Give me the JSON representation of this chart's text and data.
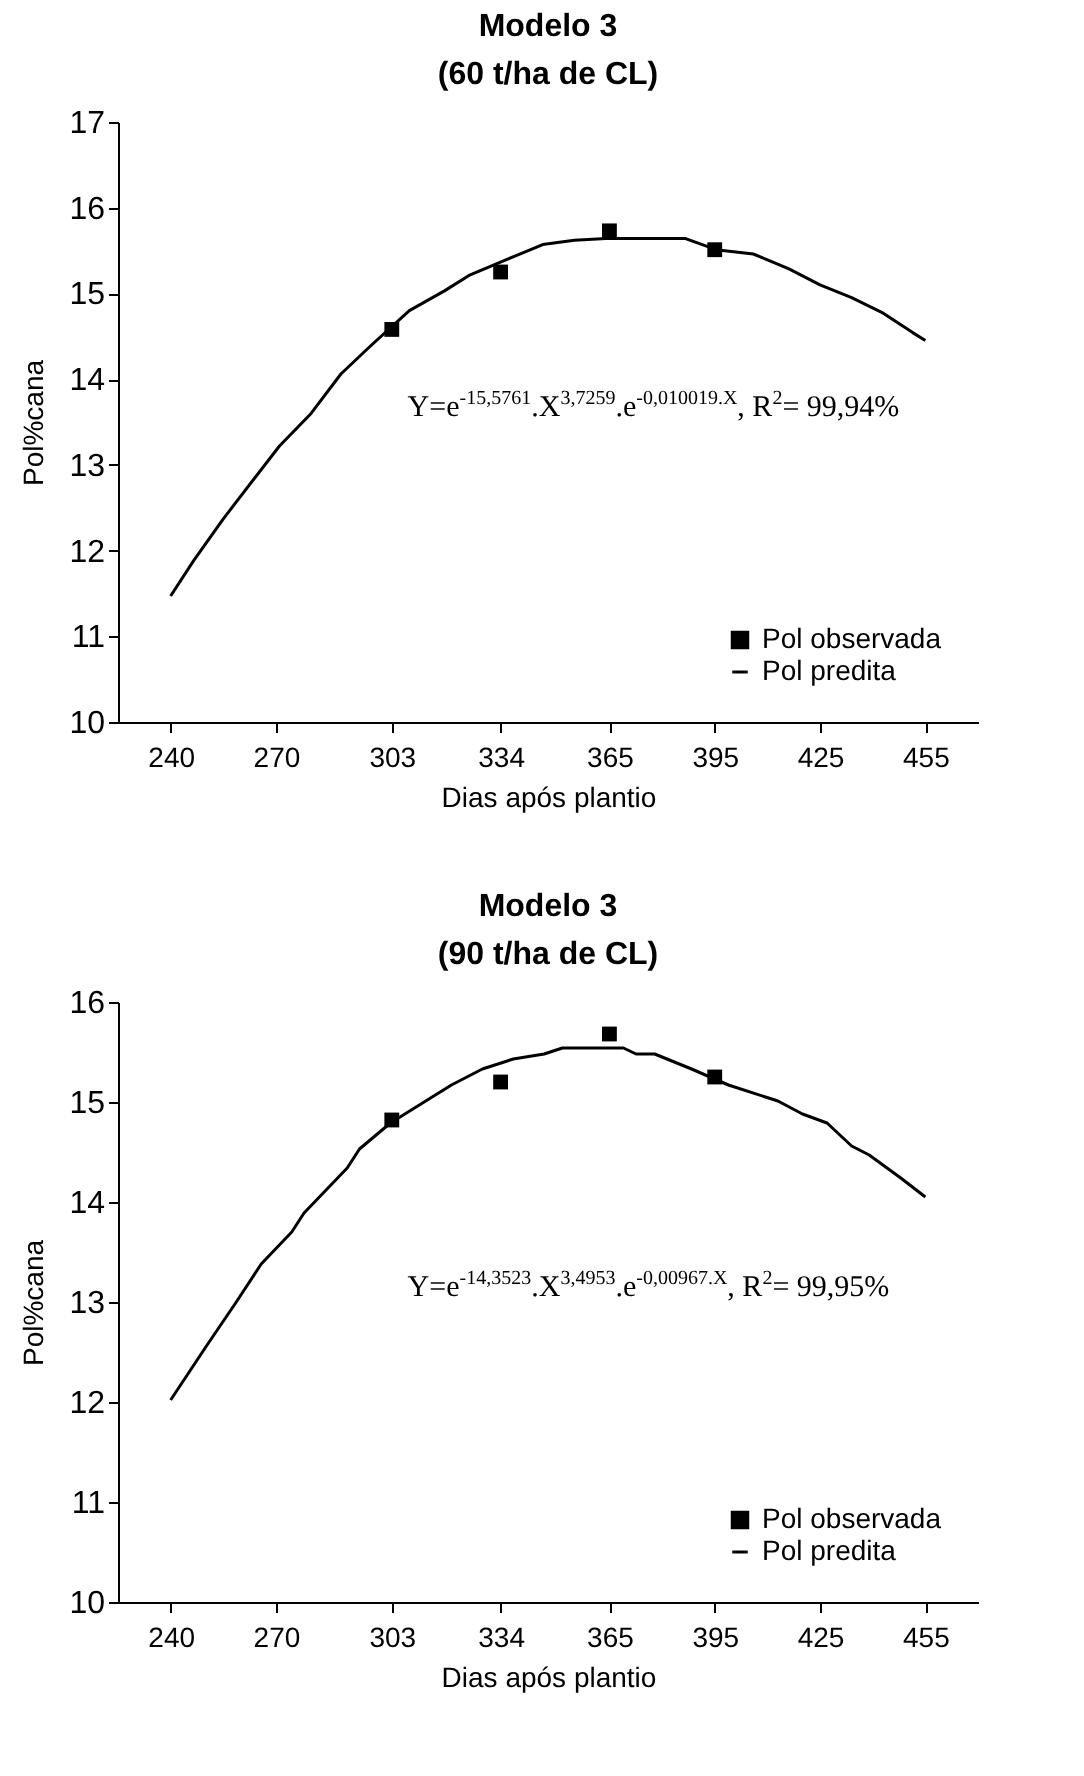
{
  "chart_data": [
    {
      "type": "line",
      "title": "Modelo 3",
      "subtitle": "(60 t/ha de CL)",
      "xlabel": "Dias após plantio",
      "ylabel": "Pol%cana",
      "xlim": [
        225,
        470
      ],
      "xticks": [
        240,
        270,
        303,
        334,
        365,
        395,
        425,
        455
      ],
      "ylim": [
        10,
        17
      ],
      "yticks": [
        10,
        11,
        12,
        13,
        14,
        15,
        16,
        17
      ],
      "grid": false,
      "legend": "bottom right",
      "line_style": "solid",
      "annotations": [
        "Y=e$^{-15,5761}$.X$^{3,7259}$.e$^{-0,010019.X}$, R$^{2}$= 99,94%"
      ],
      "series": [
        {
          "name": "Pol observada",
          "type": "scatter",
          "marker": "square",
          "color": "#000000",
          "x": [
            303,
            334,
            365,
            395
          ],
          "values": [
            14.58,
            15.25,
            15.73,
            15.51
          ]
        },
        {
          "name": "Pol predita",
          "color": "#000000",
          "x": [
            240,
            246.5,
            255,
            264,
            271,
            280,
            288.5,
            297,
            308,
            318,
            325,
            336,
            346,
            355,
            364,
            386.7,
            395.4,
            406,
            416,
            425,
            434,
            443,
            451.5,
            455
          ],
          "values": [
            11.47,
            11.88,
            12.37,
            12.85,
            13.22,
            13.6,
            14.06,
            14.39,
            14.8,
            15.03,
            15.21,
            15.4,
            15.57,
            15.62,
            15.64,
            15.64,
            15.51,
            15.46,
            15.29,
            15.1,
            14.95,
            14.77,
            14.54,
            14.45
          ]
        }
      ]
    },
    {
      "type": "line",
      "title": "Modelo 3",
      "subtitle": "(90 t/ha de CL)",
      "xlabel": "Dias após plantio",
      "ylabel": "Pol%cana",
      "xlim": [
        225,
        470
      ],
      "xticks": [
        240,
        270,
        303,
        334,
        365,
        395,
        425,
        455
      ],
      "ylim": [
        10,
        16
      ],
      "yticks": [
        10,
        11,
        12,
        13,
        14,
        15,
        16
      ],
      "grid": false,
      "legend": "bottom right",
      "line_style": "solid",
      "annotations": [
        "Y=e$^{-14,3523}$.X$^{3,4953}$.e$^{-0,00967.X}$, R$^{2}$= 99,95%"
      ],
      "series": [
        {
          "name": "Pol observada",
          "type": "scatter",
          "marker": "square",
          "color": "#000000",
          "x": [
            303,
            334,
            365,
            395
          ],
          "values": [
            14.82,
            15.2,
            15.68,
            15.25
          ]
        },
        {
          "name": "Pol predita",
          "color": "#000000",
          "x": [
            240,
            250,
            258.7,
            265.8,
            274.5,
            278,
            290.3,
            293.8,
            302.6,
            311.3,
            320,
            328.8,
            337.6,
            346.4,
            351.6,
            369,
            372.6,
            377.9,
            388.4,
            398.9,
            413,
            420,
            427,
            434,
            439,
            448,
            455
          ],
          "values": [
            12.02,
            12.55,
            13.0,
            13.38,
            13.7,
            13.89,
            14.34,
            14.53,
            14.79,
            14.98,
            15.17,
            15.33,
            15.43,
            15.48,
            15.54,
            15.54,
            15.48,
            15.48,
            15.33,
            15.17,
            15.01,
            14.88,
            14.79,
            14.56,
            14.47,
            14.24,
            14.05
          ]
        }
      ]
    }
  ]
}
